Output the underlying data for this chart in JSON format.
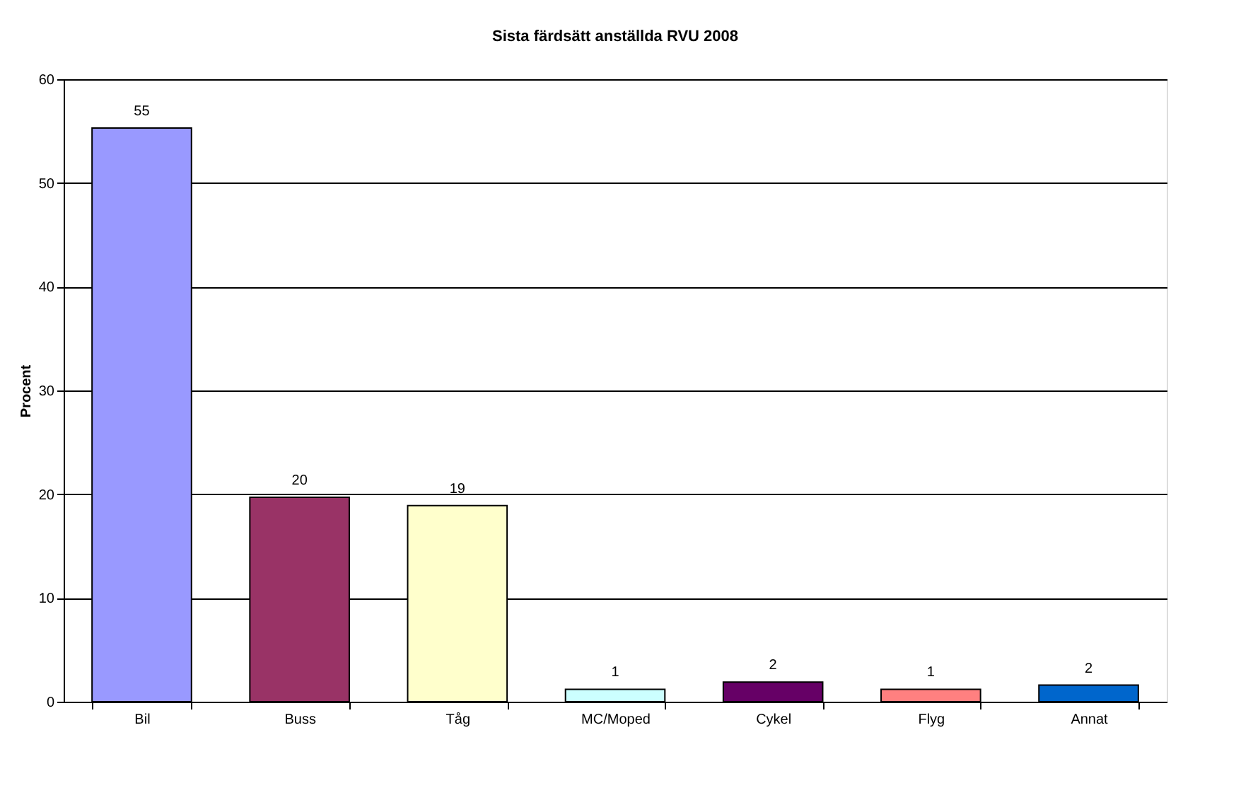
{
  "chart_data": {
    "type": "bar",
    "title": "Sista färdsätt anställda RVU 2008",
    "ylabel": "Procent",
    "categories": [
      "Bil",
      "Buss",
      "Tåg",
      "MC/Moped",
      "Cykel",
      "Flyg",
      "Annat"
    ],
    "values": [
      55.3,
      19.7,
      18.9,
      1.2,
      1.9,
      1.2,
      1.6
    ],
    "value_labels": [
      "55",
      "20",
      "19",
      "1",
      "2",
      "1",
      "2"
    ],
    "colors": [
      "#9999ff",
      "#993366",
      "#ffffcc",
      "#ccffff",
      "#660066",
      "#ff8080",
      "#0066cc"
    ],
    "ylim": [
      0,
      60
    ],
    "yticks": [
      0,
      10,
      20,
      30,
      40,
      50,
      60
    ],
    "grid": "y"
  }
}
